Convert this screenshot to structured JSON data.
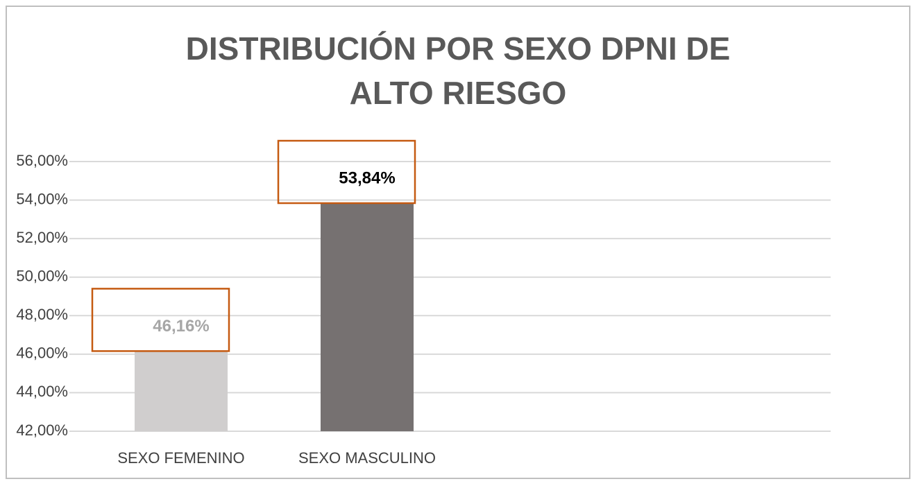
{
  "chart_data": {
    "type": "bar",
    "title": "DISTRIBUCIÓN POR SEXO DPNI DE ALTO RIESGO",
    "categories": [
      "SEXO FEMENINO",
      "SEXO MASCULINO"
    ],
    "values": [
      46.16,
      53.84
    ],
    "value_labels": [
      "46,16%",
      "53,84%"
    ],
    "colors": [
      "#d0cece",
      "#767171"
    ],
    "label_colors": [
      "#a6a6a6",
      "#000000"
    ],
    "label_box_color": "#c55a11",
    "ylim": [
      42,
      56
    ],
    "yticks": [
      {
        "value": 42,
        "label": "42,00%"
      },
      {
        "value": 44,
        "label": "44,00%"
      },
      {
        "value": 46,
        "label": "46,00%"
      },
      {
        "value": 48,
        "label": "48,00%"
      },
      {
        "value": 50,
        "label": "50,00%"
      },
      {
        "value": 52,
        "label": "52,00%"
      },
      {
        "value": 54,
        "label": "54,00%"
      },
      {
        "value": 56,
        "label": "56,00%"
      }
    ],
    "grid": true
  }
}
